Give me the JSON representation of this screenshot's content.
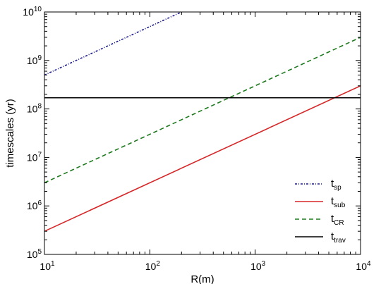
{
  "chart_data": {
    "type": "line",
    "title": "",
    "xlabel": "R(m)",
    "ylabel": "timescales (yr)",
    "xscale": "log",
    "yscale": "log",
    "xlim": [
      10,
      10000
    ],
    "ylim": [
      100000,
      10000000000
    ],
    "x_ticks": [
      10,
      100,
      1000,
      10000
    ],
    "y_ticks": [
      100000,
      1000000,
      10000000,
      100000000,
      1000000000,
      10000000000
    ],
    "x_tick_labels": [
      {
        "base": "10",
        "exp": "1"
      },
      {
        "base": "10",
        "exp": "2"
      },
      {
        "base": "10",
        "exp": "3"
      },
      {
        "base": "10",
        "exp": "4"
      }
    ],
    "y_tick_labels": [
      {
        "base": "10",
        "exp": "5"
      },
      {
        "base": "10",
        "exp": "6"
      },
      {
        "base": "10",
        "exp": "7"
      },
      {
        "base": "10",
        "exp": "8"
      },
      {
        "base": "10",
        "exp": "9"
      },
      {
        "base": "10",
        "exp": "10"
      }
    ],
    "legend_position": "bottom-right",
    "grid": false,
    "series": [
      {
        "name": "t",
        "sub": "sp",
        "color": "#1a1a8c",
        "dash": "dashdot",
        "x": [
          10,
          200
        ],
        "y": [
          500000000,
          10000000000
        ]
      },
      {
        "name": "t",
        "sub": "sub",
        "color": "#d62728",
        "dash": "solid",
        "x": [
          10,
          10000
        ],
        "y": [
          300000,
          300000000
        ]
      },
      {
        "name": "t",
        "sub": "CR",
        "color": "#1e7a1e",
        "dash": "dashed",
        "x": [
          10,
          10000
        ],
        "y": [
          3000000,
          3000000000
        ]
      },
      {
        "name": "t",
        "sub": "trav",
        "color": "#000000",
        "dash": "solid",
        "x": [
          10,
          10000
        ],
        "y": [
          170000000,
          170000000
        ]
      }
    ]
  }
}
